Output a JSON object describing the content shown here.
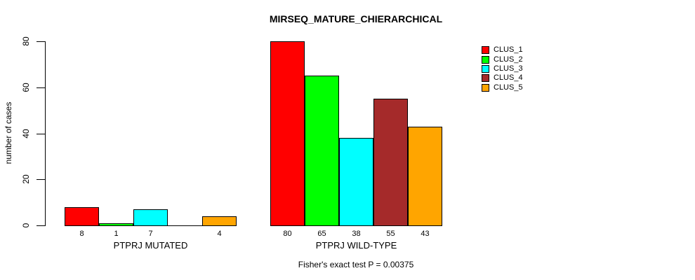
{
  "chart_data": {
    "type": "bar",
    "title": "MIRSEQ_MATURE_CHIERARCHICAL",
    "ylabel": "number of cases",
    "xlabel": "",
    "groups": [
      "PTPRJ MUTATED",
      "PTPRJ WILD-TYPE"
    ],
    "series": [
      {
        "name": "CLUS_1",
        "color": "#FF0000",
        "values": [
          8,
          80
        ]
      },
      {
        "name": "CLUS_2",
        "color": "#00FF00",
        "values": [
          1,
          65
        ]
      },
      {
        "name": "CLUS_3",
        "color": "#00FFFF",
        "values": [
          7,
          38
        ]
      },
      {
        "name": "CLUS_4",
        "color": "#A52A2A",
        "values": [
          0,
          55
        ]
      },
      {
        "name": "CLUS_5",
        "color": "#FFA500",
        "values": [
          4,
          43
        ]
      }
    ],
    "yticks": [
      0,
      20,
      40,
      60,
      80
    ],
    "ylim": [
      0,
      80
    ],
    "bar_value_labels_shown": true,
    "zero_value_labels_hidden": true,
    "bar_border_color": "#000000",
    "legend": {
      "position": "top-right",
      "entries": [
        "CLUS_1",
        "CLUS_2",
        "CLUS_3",
        "CLUS_4",
        "CLUS_5"
      ]
    },
    "footnote": "Fisher's exact test P = 0.00375",
    "grid": false,
    "background_color": "#FFFFFF",
    "text_color": "#000000"
  }
}
